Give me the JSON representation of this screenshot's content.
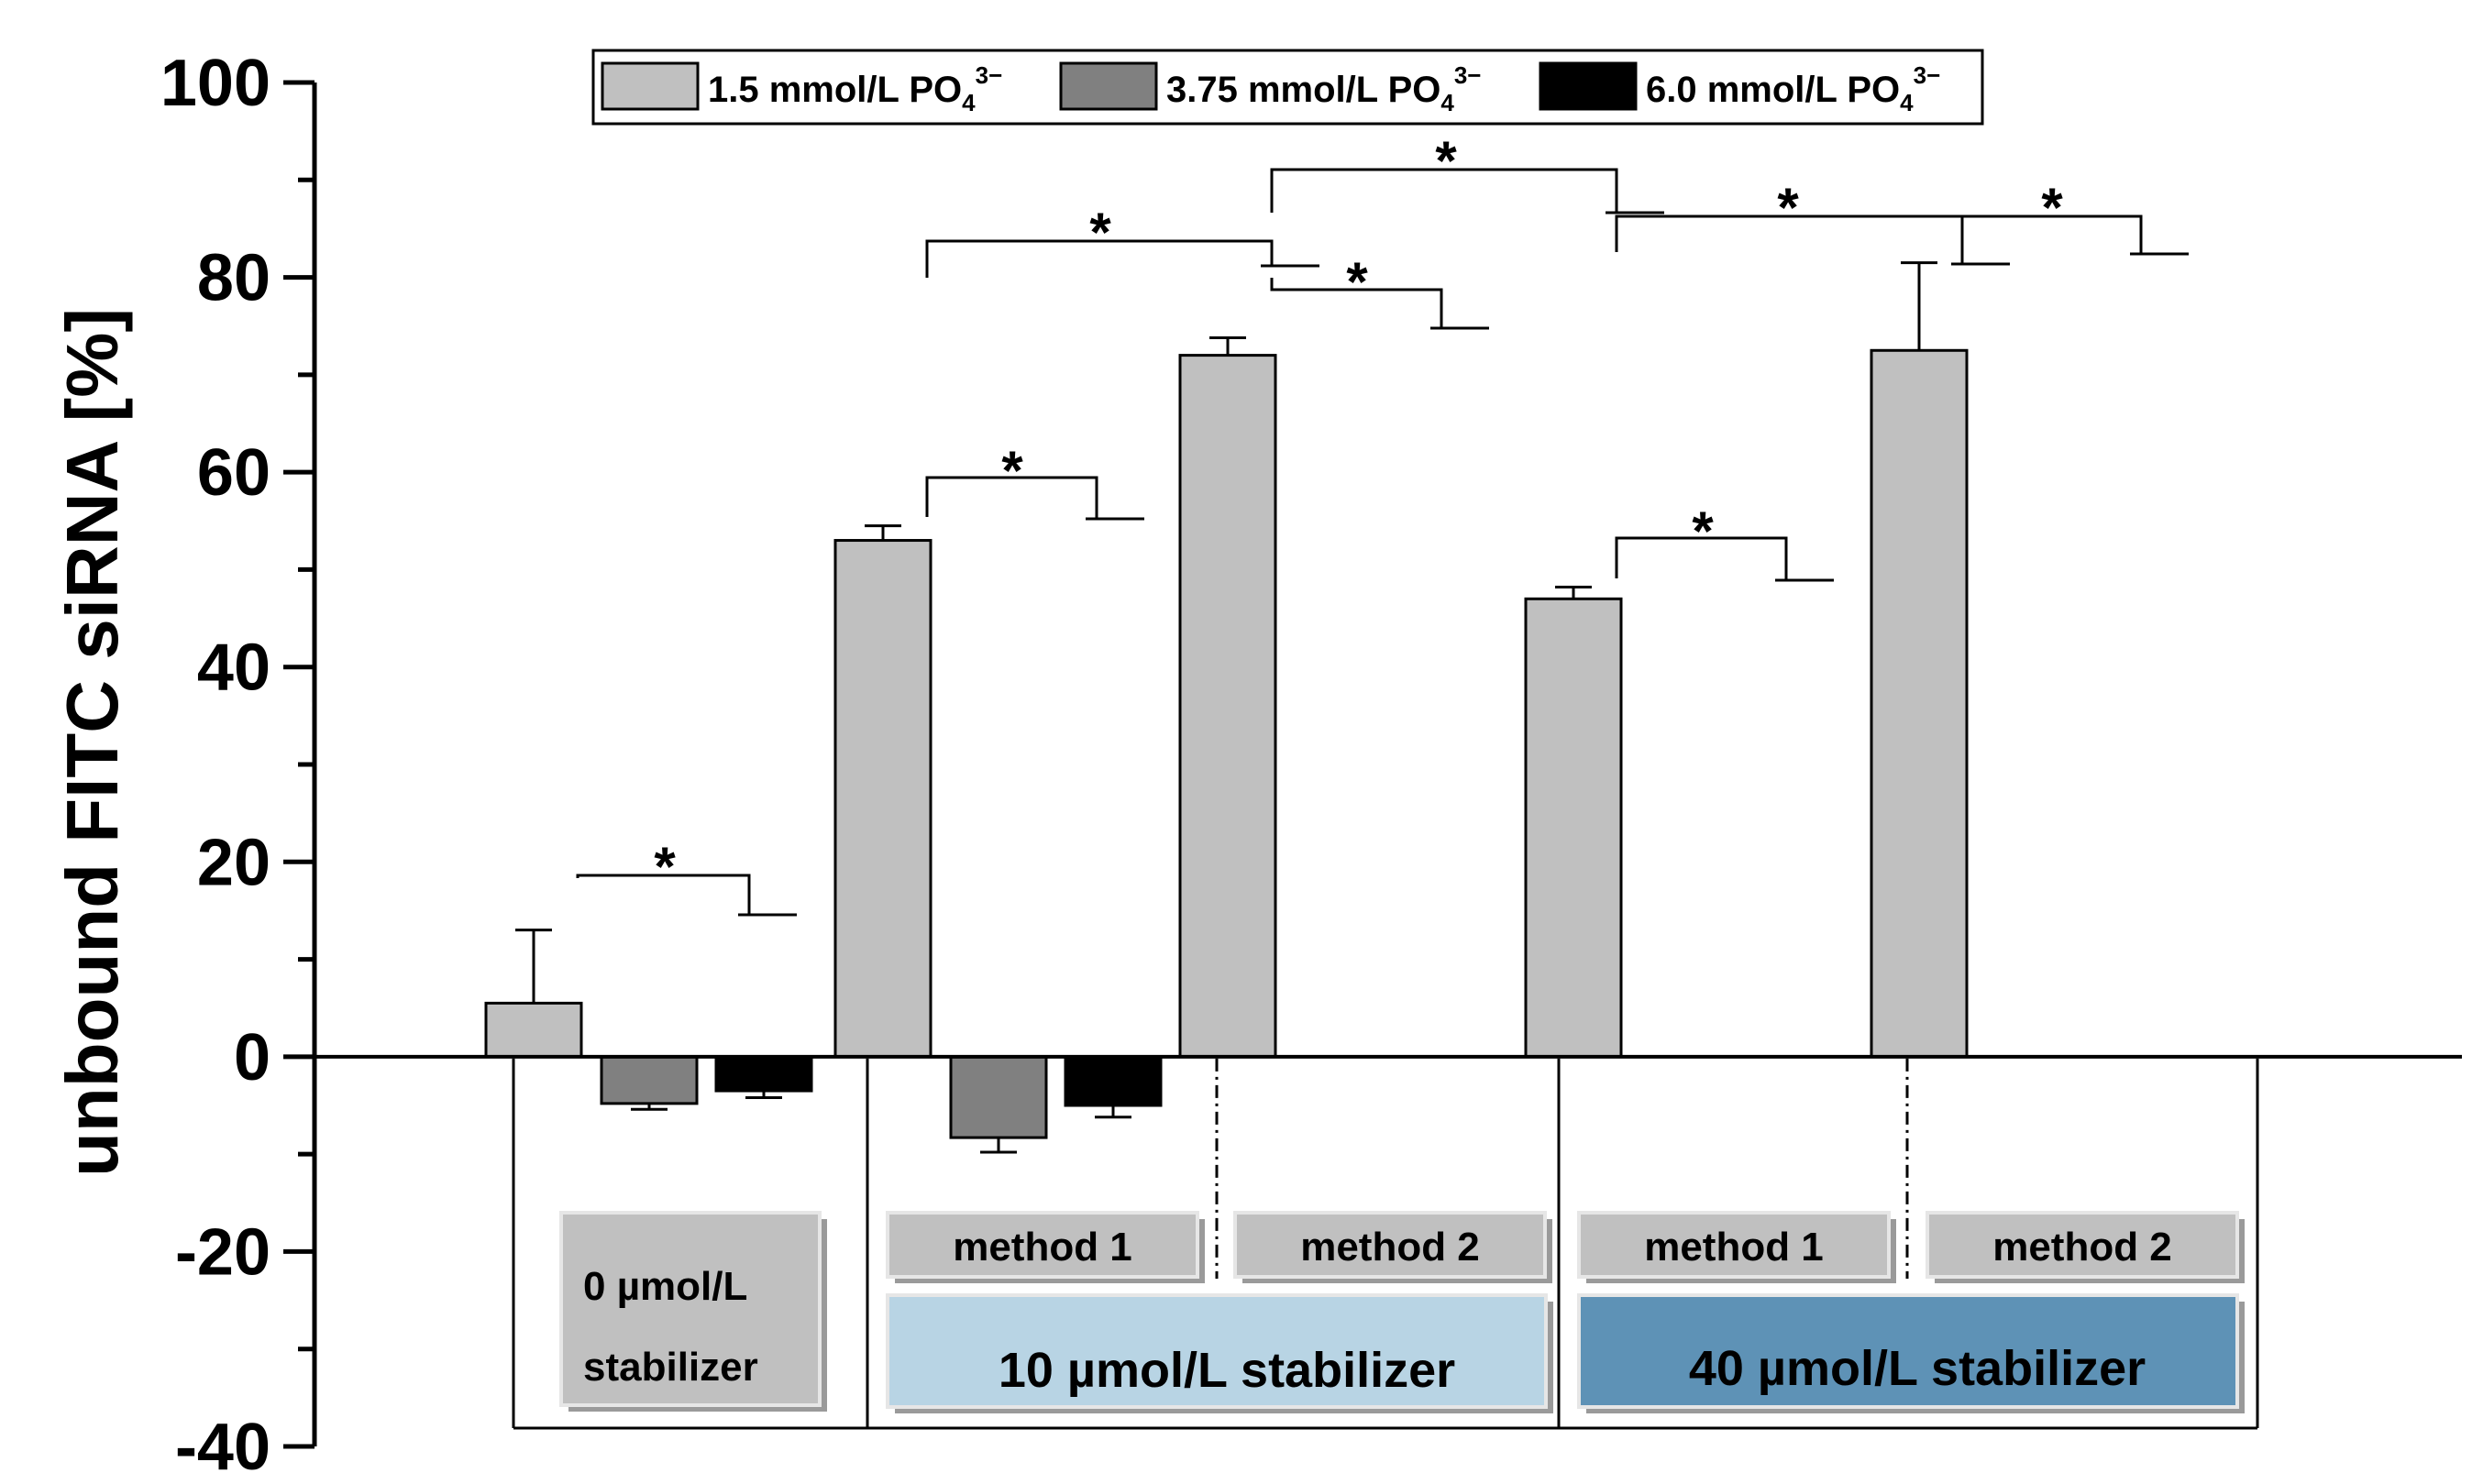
{
  "colors": {
    "series_1": "#c0c0c0",
    "series_2": "#808080",
    "series_3": "#000000",
    "stabilizer_0_box": "#c0c0c0",
    "method_box": "#c0c0c0",
    "stabilizer_10_box": "#b8d4e4",
    "stabilizer_40_box": "#5e92b6"
  },
  "chart_data": {
    "type": "bar",
    "title": "",
    "xlabel": "",
    "ylabel": "unbound FITC siRNA [%]",
    "ylim": [
      -40,
      100
    ],
    "yticks": [
      -40,
      -20,
      0,
      20,
      40,
      60,
      80,
      100
    ],
    "ytick_labels": [
      "-40",
      "-20",
      "0",
      "20",
      "40",
      "60",
      "80",
      "100"
    ],
    "legend": {
      "placement": "top",
      "entries": [
        {
          "prefix": "1.5 mmol/L PO",
          "sub": "4",
          "sup": "3−"
        },
        {
          "prefix": "3.75 mmol/L PO",
          "sub": "4",
          "sup": "3−"
        },
        {
          "prefix": "6.0 mmol/L PO",
          "sub": "4",
          "sup": "3−"
        }
      ]
    },
    "categories": [
      "0 µmol/L stabilizer",
      "10 µmol/L stabilizer, method 1",
      "10 µmol/L stabilizer, method 2",
      "40 µmol/L stabilizer, method 1",
      "40 µmol/L stabilizer, method 2"
    ],
    "series": [
      {
        "name": "1.5 mmol/L PO4 3−",
        "values": [
          5.5,
          53,
          72,
          47,
          72.5
        ],
        "errors": [
          7.5,
          1.5,
          1.8,
          1.2,
          9
        ]
      },
      {
        "name": "3.75 mmol/L PO4 3−",
        "values": [
          -4.8,
          -8.3,
          null,
          null,
          null
        ],
        "errors": [
          0.6,
          1.5,
          null,
          null,
          null
        ]
      },
      {
        "name": "6.0 mmol/L PO4 3−",
        "values": [
          -3.5,
          -5,
          null,
          null,
          null
        ],
        "errors": [
          0.7,
          1.2,
          null,
          null,
          null
        ]
      }
    ],
    "significance_mark": "*",
    "significance": [
      {
        "between": [
          [
            0,
            0
          ],
          [
            0,
            1
          ]
        ]
      },
      {
        "between": [
          [
            1,
            0
          ],
          [
            1,
            1
          ]
        ]
      },
      {
        "between": [
          [
            1,
            0
          ],
          [
            2,
            0
          ]
        ]
      },
      {
        "between": [
          [
            2,
            0
          ],
          [
            2,
            1
          ]
        ]
      },
      {
        "between": [
          [
            2,
            0
          ],
          [
            3,
            0
          ]
        ]
      },
      {
        "between": [
          [
            3,
            0
          ],
          [
            3,
            1
          ]
        ]
      },
      {
        "between": [
          [
            3,
            0
          ],
          [
            4,
            0
          ]
        ]
      },
      {
        "between": [
          [
            4,
            0
          ],
          [
            4,
            1
          ]
        ]
      }
    ],
    "group_labels": {
      "stabilizer_0": [
        "0 µmol/L",
        "stabilizer"
      ],
      "method_1": "method 1",
      "method_2": "method 2",
      "stabilizer_10": "10 µmol/L stabilizer",
      "stabilizer_40": "40 µmol/L stabilizer"
    }
  }
}
